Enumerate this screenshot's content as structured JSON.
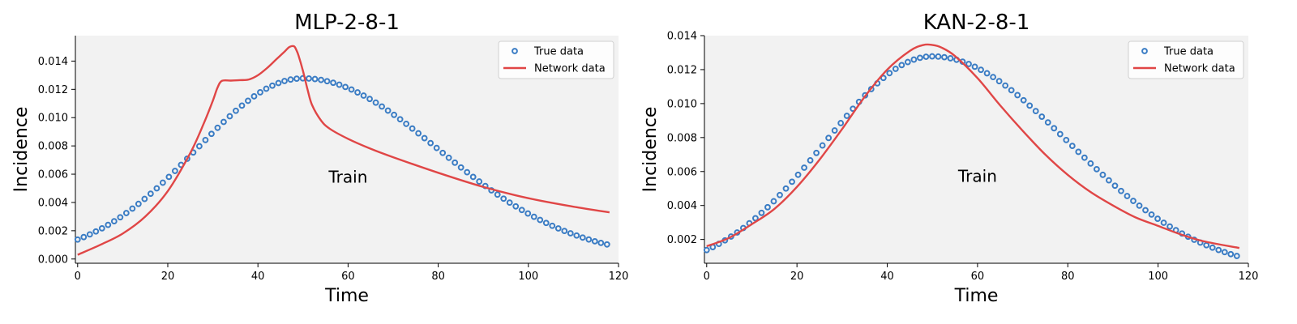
{
  "chart_data": [
    {
      "type": "line",
      "title": "MLP-2-8-1",
      "xlabel": "Time",
      "ylabel": "Incidence",
      "xlim": [
        -0.5,
        120
      ],
      "ylim": [
        -0.0003,
        0.0158
      ],
      "xticks": [
        0,
        20,
        40,
        60,
        80,
        100,
        120
      ],
      "yticks": [
        0.0,
        0.002,
        0.004,
        0.006,
        0.008,
        0.01,
        0.012,
        0.014
      ],
      "ytick_labels": [
        "0.000",
        "0.002",
        "0.004",
        "0.006",
        "0.008",
        "0.010",
        "0.012",
        "0.014"
      ],
      "annotation": {
        "text": "Train",
        "x": 60,
        "y": 0.0054
      },
      "legend": {
        "position": "top-right",
        "entries": [
          "True data",
          "Network data"
        ]
      },
      "series": [
        {
          "name": "True data",
          "style": "marker",
          "color": "#3a7cc4",
          "points_from": "true_curve"
        },
        {
          "name": "Network data",
          "style": "line",
          "color": "#e04646",
          "x": [
            0,
            5,
            10,
            15,
            20,
            25,
            28,
            30,
            31,
            32,
            34,
            36,
            38,
            40,
            42,
            44,
            46,
            47,
            48,
            48.5,
            49,
            50,
            51,
            52,
            54,
            56,
            60,
            65,
            70,
            80,
            90,
            100,
            110,
            118
          ],
          "y": [
            0.0003,
            0.001,
            0.0018,
            0.003,
            0.0048,
            0.0075,
            0.0096,
            0.0112,
            0.0121,
            0.0126,
            0.01262,
            0.01265,
            0.0127,
            0.013,
            0.0135,
            0.0141,
            0.0147,
            0.015,
            0.01505,
            0.0148,
            0.0144,
            0.0133,
            0.012,
            0.0109,
            0.0098,
            0.0092,
            0.0085,
            0.0078,
            0.0072,
            0.0061,
            0.0051,
            0.0043,
            0.0037,
            0.0033
          ]
        }
      ]
    },
    {
      "type": "line",
      "title": "KAN-2-8-1",
      "xlabel": "Time",
      "ylabel": "Incidence",
      "xlim": [
        -0.5,
        120
      ],
      "ylim": [
        0.0006,
        0.014
      ],
      "xticks": [
        0,
        20,
        40,
        60,
        80,
        100,
        120
      ],
      "yticks": [
        0.002,
        0.004,
        0.006,
        0.008,
        0.01,
        0.012,
        0.014
      ],
      "ytick_labels": [
        "0.002",
        "0.004",
        "0.006",
        "0.008",
        "0.010",
        "0.012",
        "0.014"
      ],
      "annotation": {
        "text": "Train",
        "x": 60,
        "y": 0.0054
      },
      "legend": {
        "position": "top-right",
        "entries": [
          "True data",
          "Network data"
        ]
      },
      "series": [
        {
          "name": "True data",
          "style": "marker",
          "color": "#3a7cc4",
          "points_from": "true_curve"
        },
        {
          "name": "Network data",
          "style": "line",
          "color": "#e04646",
          "x": [
            0,
            5,
            10,
            15,
            20,
            25,
            30,
            35,
            40,
            45,
            48,
            50,
            52,
            55,
            60,
            65,
            70,
            75,
            80,
            85,
            90,
            95,
            100,
            105,
            110,
            118
          ],
          "y": [
            0.0016,
            0.0021,
            0.0029,
            0.0038,
            0.0051,
            0.0067,
            0.0085,
            0.0104,
            0.012,
            0.0131,
            0.01345,
            0.01345,
            0.0133,
            0.0128,
            0.0115,
            0.0099,
            0.0084,
            0.007,
            0.0058,
            0.0048,
            0.004,
            0.0033,
            0.0028,
            0.0023,
            0.0019,
            0.0015
          ]
        }
      ]
    }
  ],
  "true_curve": {
    "x_start": 0,
    "x_end": 118,
    "x_step": 1.35,
    "y_peak": 0.01278,
    "x_peak": 50
  },
  "colors": {
    "plot_bg": "#f2f2f2",
    "true_marker": "#3a7cc4",
    "network_line": "#e04646"
  }
}
